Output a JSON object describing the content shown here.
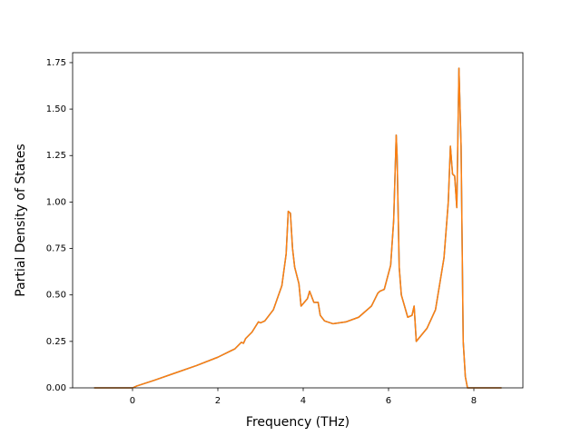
{
  "chart_data": {
    "type": "line",
    "xlabel": "Frequency (THz)",
    "ylabel": "Partial Density of States",
    "x": [
      -0.9,
      0,
      0.1,
      0.5,
      1,
      1.5,
      2,
      2.4,
      2.55,
      2.6,
      2.65,
      2.8,
      2.95,
      3.0,
      3.1,
      3.3,
      3.5,
      3.6,
      3.65,
      3.7,
      3.75,
      3.8,
      3.9,
      3.95,
      4.1,
      4.15,
      4.25,
      4.35,
      4.4,
      4.5,
      4.7,
      5.0,
      5.3,
      5.6,
      5.75,
      5.8,
      5.9,
      6.05,
      6.12,
      6.18,
      6.2,
      6.25,
      6.3,
      6.45,
      6.55,
      6.6,
      6.65,
      6.9,
      7.1,
      7.3,
      7.4,
      7.45,
      7.5,
      7.55,
      7.6,
      7.65,
      7.7,
      7.75,
      7.8,
      7.85,
      7.9,
      8.2,
      8.65
    ],
    "series": [
      {
        "color": "#1f77b4",
        "values": [
          0,
          0,
          0.01,
          0.04,
          0.08,
          0.12,
          0.165,
          0.21,
          0.245,
          0.24,
          0.265,
          0.3,
          0.355,
          0.35,
          0.36,
          0.42,
          0.55,
          0.72,
          0.95,
          0.94,
          0.75,
          0.65,
          0.56,
          0.44,
          0.48,
          0.52,
          0.46,
          0.46,
          0.39,
          0.36,
          0.345,
          0.355,
          0.38,
          0.44,
          0.51,
          0.52,
          0.53,
          0.66,
          0.9,
          1.36,
          1.25,
          0.65,
          0.5,
          0.38,
          0.39,
          0.44,
          0.25,
          0.32,
          0.42,
          0.7,
          1.0,
          1.3,
          1.15,
          1.14,
          0.97,
          1.72,
          1.3,
          0.25,
          0.06,
          0,
          0,
          0,
          0
        ]
      },
      {
        "color": "#ff7f0e",
        "values": [
          0,
          0,
          0.01,
          0.04,
          0.08,
          0.12,
          0.165,
          0.21,
          0.245,
          0.24,
          0.265,
          0.3,
          0.355,
          0.35,
          0.36,
          0.42,
          0.55,
          0.72,
          0.95,
          0.94,
          0.75,
          0.65,
          0.56,
          0.44,
          0.48,
          0.52,
          0.46,
          0.46,
          0.39,
          0.36,
          0.345,
          0.355,
          0.38,
          0.44,
          0.51,
          0.52,
          0.53,
          0.66,
          0.9,
          1.36,
          1.25,
          0.65,
          0.5,
          0.38,
          0.39,
          0.44,
          0.25,
          0.32,
          0.42,
          0.7,
          1.0,
          1.3,
          1.15,
          1.14,
          0.97,
          1.72,
          1.3,
          0.25,
          0.06,
          0,
          0,
          0,
          0
        ]
      }
    ],
    "xlim": [
      -1.404,
      9.149
    ],
    "ylim": [
      0,
      1.8035
    ],
    "xticks": [
      0,
      2,
      4,
      6,
      8
    ],
    "yticks": [
      {
        "value": 0,
        "label": "0.00"
      },
      {
        "value": 0.25,
        "label": "0.25"
      },
      {
        "value": 0.5,
        "label": "0.50"
      },
      {
        "value": 0.75,
        "label": "0.75"
      },
      {
        "value": 1,
        "label": "1.00"
      },
      {
        "value": 1.25,
        "label": "1.25"
      },
      {
        "value": 1.5,
        "label": "1.50"
      },
      {
        "value": 1.75,
        "label": "1.75"
      }
    ],
    "grid": false
  }
}
